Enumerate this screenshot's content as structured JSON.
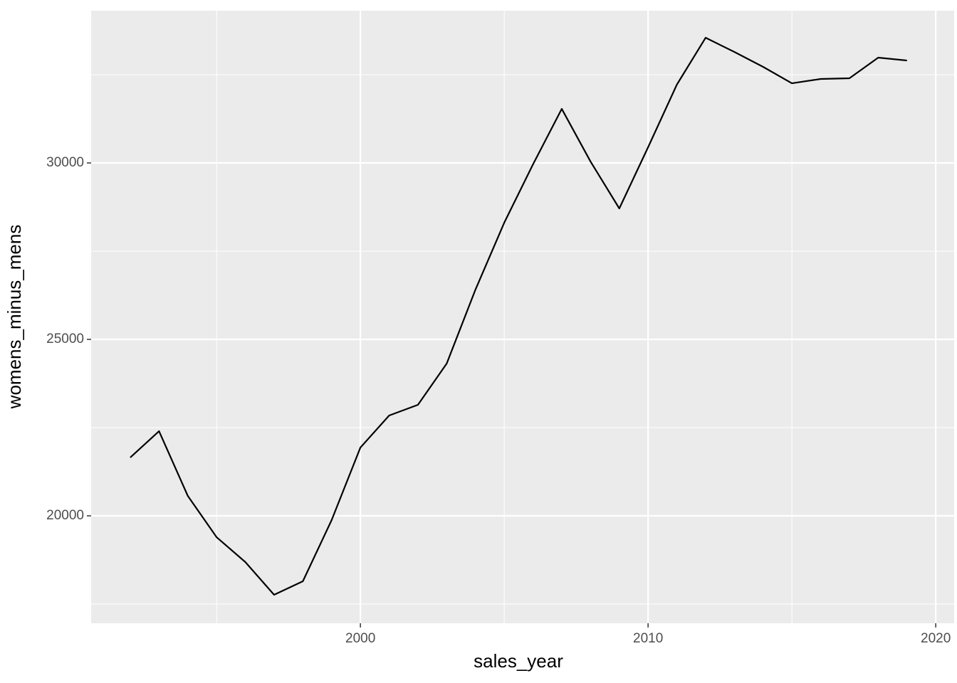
{
  "chart_data": {
    "type": "line",
    "x_label": "sales_year",
    "y_label": "womens_minus_mens",
    "x": [
      1992,
      1993,
      1994,
      1995,
      1996,
      1997,
      1998,
      1999,
      2000,
      2001,
      2002,
      2003,
      2004,
      2005,
      2006,
      2007,
      2008,
      2009,
      2010,
      2011,
      2012,
      2013,
      2014,
      2015,
      2016,
      2017,
      2018,
      2019
    ],
    "series": [
      {
        "color": "#000000",
        "values": [
          21653,
          22399,
          20565,
          19395,
          18690,
          17762,
          18145,
          19879,
          21935,
          22843,
          23145,
          24315,
          26411,
          28306,
          29960,
          31532,
          30040,
          28710,
          30444,
          32218,
          33548,
          33145,
          32722,
          32258,
          32379,
          32399,
          32984,
          32903
        ]
      }
    ],
    "xlim": [
      1990.64,
      2020.64
    ],
    "xticks": [
      2000,
      2010,
      2020
    ],
    "xminor": [
      1995,
      2005,
      2015
    ],
    "ylim": [
      16956,
      34315
    ],
    "yticks": [
      20000,
      25000,
      30000
    ],
    "yminor": [
      17500,
      22500,
      27500,
      32500
    ],
    "grid": true
  }
}
